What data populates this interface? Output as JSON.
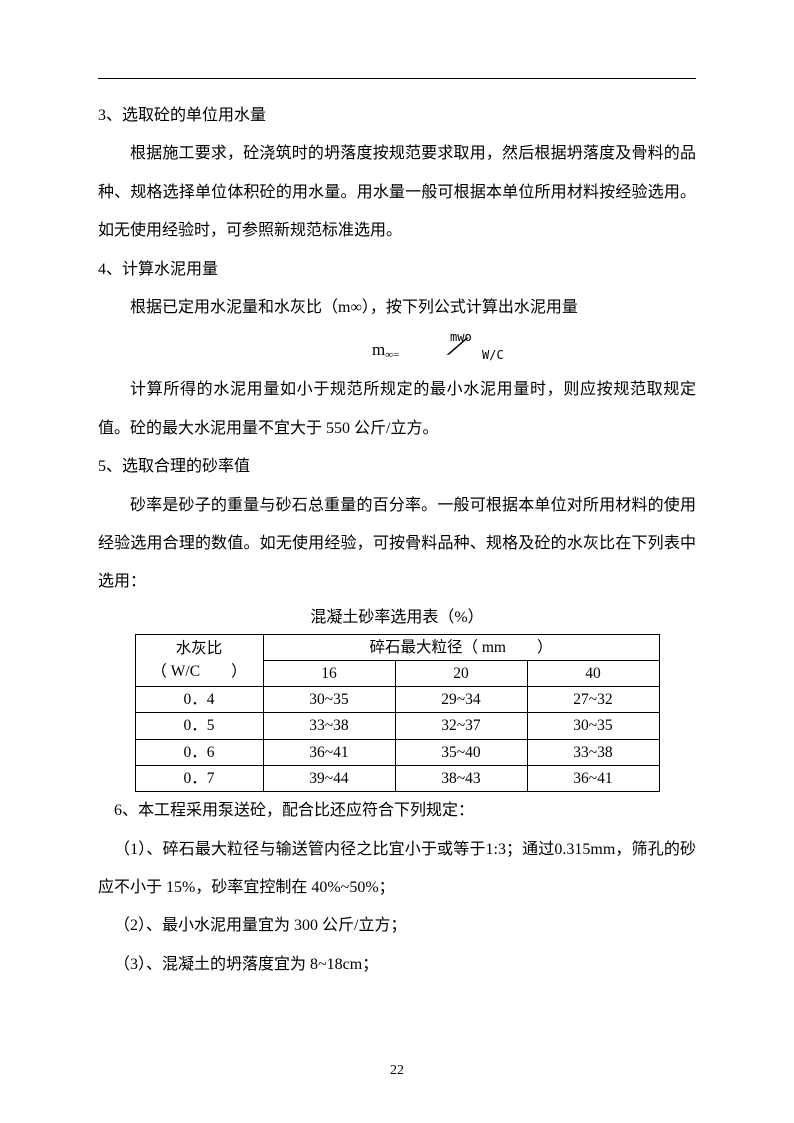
{
  "section3": {
    "heading": "3、选取砼的单位用水量",
    "p1": "根据施工要求，砼浇筑时的坍落度按规范要求取用，然后根据坍落度及骨料的品种、规格选择单位体积砼的用水量。用水量一般可根据本单位所用材料按经验选用。如无使用经验时，可参照新规范标准选用。"
  },
  "section4": {
    "heading": "4、计算水泥用量",
    "p1": "根据已定用水泥量和水灰比（m∞），按下列公式计算出水泥用量",
    "formula": {
      "left": "m",
      "sub1": "∞=",
      "top": "mwo",
      "bot": "W/C"
    },
    "p2": "计算所得的水泥用量如小于规范所规定的最小水泥用量时，则应按规范取规定值。砼的最大水泥用量不宜大于 550 公斤/立方。"
  },
  "section5": {
    "heading": "5、选取合理的砂率值",
    "p1": "砂率是砂子的重量与砂石总重量的百分率。一般可根据本单位对所用材料的使用经验选用合理的数值。如无使用经验，可按骨料品种、规格及砼的水灰比在下列表中选用："
  },
  "table": {
    "title": "混凝土砂率选用表（%）",
    "header": {
      "wc_line1": "水灰比",
      "wc_line2": "（ W/C　　）",
      "stone": "碎石最大粒径（ mm　　）",
      "cols": [
        "16",
        "20",
        "40"
      ]
    },
    "rows": [
      {
        "wc": "0．4",
        "c1": "30~35",
        "c2": "29~34",
        "c3": "27~32"
      },
      {
        "wc": "0．5",
        "c1": "33~38",
        "c2": "32~37",
        "c3": "30~35"
      },
      {
        "wc": "0．6",
        "c1": "36~41",
        "c2": "35~40",
        "c3": "33~38"
      },
      {
        "wc": "0．7",
        "c1": "39~44",
        "c2": "38~43",
        "c3": "36~41"
      }
    ]
  },
  "section6": {
    "heading": "6、本工程采用泵送砼，配合比还应符合下列规定：",
    "p1": "（1）、碎石最大粒径与输送管内径之比宜小于或等于1:3；通过0.315mm，筛孔的砂应不小于 15%，砂率宜控制在 40%~50%；",
    "p2": "（2）、最小水泥用量宜为 300 公斤/立方；",
    "p3": "（3）、混凝土的坍落度宜为 8~18cm；"
  },
  "pageNumber": "22"
}
